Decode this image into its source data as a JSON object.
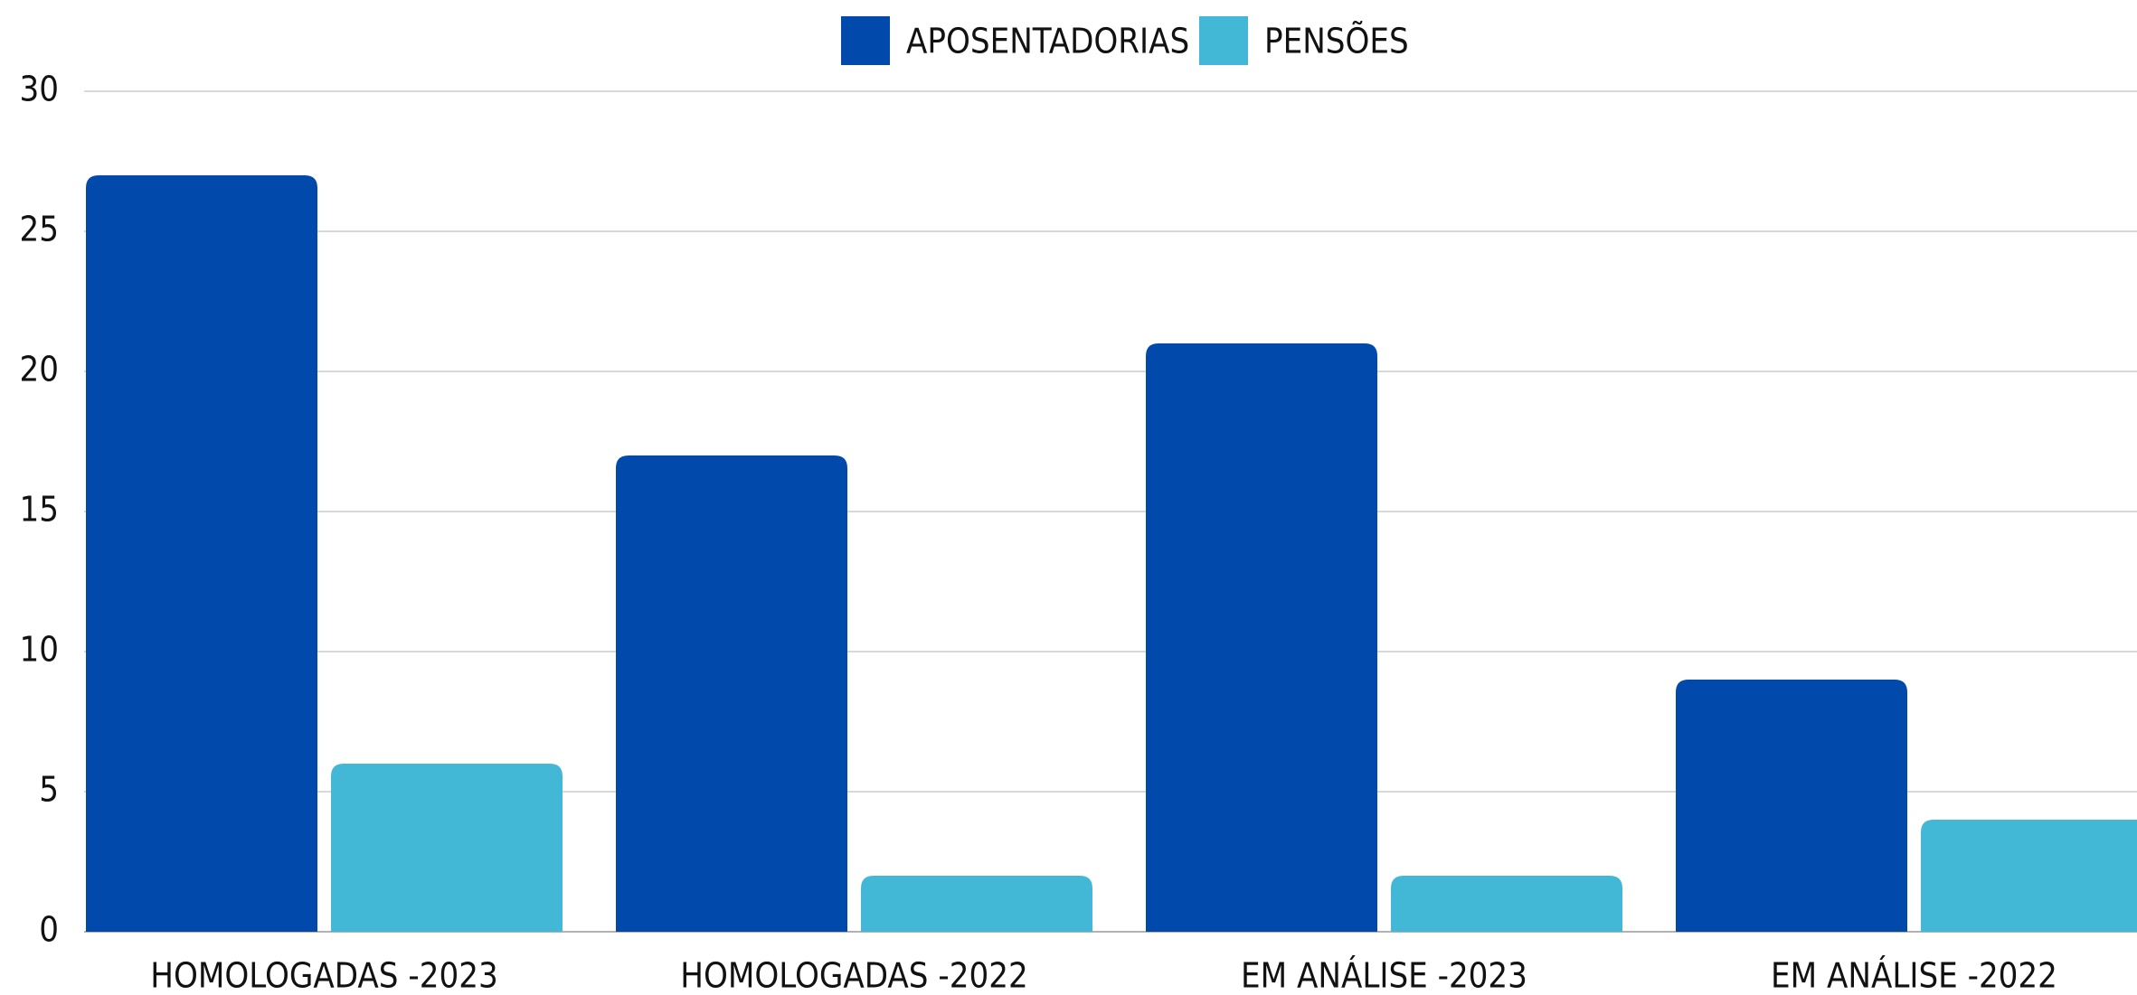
{
  "chart_data": {
    "type": "bar",
    "categories": [
      "HOMOLOGADAS -2023",
      "HOMOLOGADAS -2022",
      "EM ANÁLISE -2023",
      "EM ANÁLISE -2022"
    ],
    "series": [
      {
        "name": "APOSENTADORIAS",
        "color": "#014aac",
        "values": [
          27,
          17,
          21,
          9
        ]
      },
      {
        "name": "PENSÕES",
        "color": "#43b8d6",
        "values": [
          6,
          2,
          2,
          4
        ]
      }
    ],
    "ylim": [
      0,
      30
    ],
    "yticks": [
      0,
      5,
      10,
      15,
      20,
      25,
      30
    ],
    "grid": true,
    "legend": "top"
  }
}
